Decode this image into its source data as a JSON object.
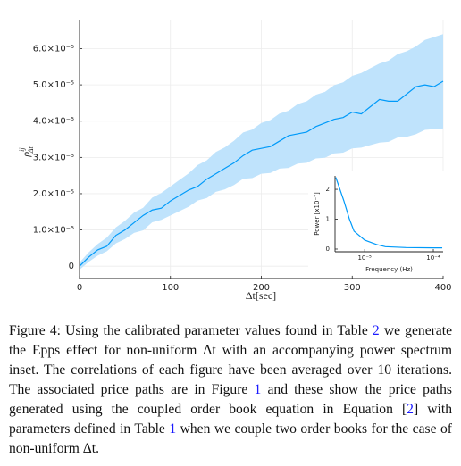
{
  "chart_data": {
    "type": "line",
    "ylabel": "ρ",
    "ylabel_sup": "ij",
    "ylabel_sub": "Δt",
    "xlabel": "Δt[sec]",
    "color": "#009af9",
    "band_color": "#bfe3fc",
    "grid": true,
    "xlim": [
      0,
      400
    ],
    "xticks": [
      0,
      100,
      200,
      300,
      400
    ],
    "ylim": [
      -3.4e-06,
      6.8e-05
    ],
    "yticks": [
      {
        "value": 0,
        "label": "0"
      },
      {
        "value": 1e-05,
        "label": "1.0×10⁻⁵"
      },
      {
        "value": 2e-05,
        "label": "2.0×10⁻⁵"
      },
      {
        "value": 3e-05,
        "label": "3.0×10⁻⁵"
      },
      {
        "value": 4e-05,
        "label": "4.0×10⁻⁵"
      },
      {
        "value": 5e-05,
        "label": "5.0×10⁻⁵"
      },
      {
        "value": 6e-05,
        "label": "6.0×10⁻⁵"
      }
    ],
    "x": [
      0,
      10,
      20,
      30,
      40,
      50,
      60,
      70,
      80,
      90,
      100,
      110,
      120,
      130,
      140,
      150,
      160,
      170,
      180,
      190,
      200,
      210,
      220,
      230,
      240,
      250,
      260,
      270,
      280,
      290,
      300,
      310,
      320,
      330,
      340,
      350,
      360,
      370,
      380,
      390,
      400
    ],
    "values": [
      0,
      2.5e-06,
      4.5e-06,
      5.5e-06,
      8.5e-06,
      1e-05,
      1.2e-05,
      1.4e-05,
      1.55e-05,
      1.6e-05,
      1.8e-05,
      1.95e-05,
      2.1e-05,
      2.2e-05,
      2.4e-05,
      2.55e-05,
      2.7e-05,
      2.85e-05,
      3.05e-05,
      3.2e-05,
      3.25e-05,
      3.3e-05,
      3.45e-05,
      3.6e-05,
      3.65e-05,
      3.7e-05,
      3.85e-05,
      3.95e-05,
      4.05e-05,
      4.1e-05,
      4.25e-05,
      4.2e-05,
      4.4e-05,
      4.6e-05,
      4.55e-05,
      4.55e-05,
      4.75e-05,
      4.95e-05,
      5e-05,
      4.95e-05,
      5.1e-05
    ],
    "lower": [
      -1e-06,
      1.2e-06,
      2.9e-06,
      4.1e-06,
      6.3e-06,
      7.5e-06,
      9.2e-06,
      9.9e-06,
      1.21e-05,
      1.28e-05,
      1.4e-05,
      1.52e-05,
      1.64e-05,
      1.81e-05,
      1.88e-05,
      2.05e-05,
      2.12e-05,
      2.24e-05,
      2.41e-05,
      2.43e-05,
      2.55e-05,
      2.57e-05,
      2.69e-05,
      2.71e-05,
      2.83e-05,
      2.85e-05,
      2.97e-05,
      2.99e-05,
      3.11e-05,
      3.13e-05,
      3.25e-05,
      3.27e-05,
      3.34e-05,
      3.41e-05,
      3.43e-05,
      3.55e-05,
      3.57e-05,
      3.64e-05,
      3.76e-05,
      3.78e-05,
      3.8e-05
    ],
    "upper": [
      1e-06,
      3.8e-06,
      6.1e-06,
      7.9e-06,
      1.07e-05,
      1.25e-05,
      1.48e-05,
      1.61e-05,
      1.89e-05,
      2.02e-05,
      2.2e-05,
      2.38e-05,
      2.56e-05,
      2.79e-05,
      2.92e-05,
      3.15e-05,
      3.28e-05,
      3.46e-05,
      3.69e-05,
      3.77e-05,
      3.95e-05,
      4.03e-05,
      4.21e-05,
      4.29e-05,
      4.47e-05,
      4.55e-05,
      4.73e-05,
      4.81e-05,
      4.99e-05,
      5.07e-05,
      5.25e-05,
      5.33e-05,
      5.46e-05,
      5.59e-05,
      5.67e-05,
      5.85e-05,
      5.93e-05,
      6.06e-05,
      6.24e-05,
      6.32e-05,
      6.4e-05
    ],
    "inset": {
      "type": "line",
      "log_x": true,
      "ylabel": "Power [x10⁻⁷]",
      "xlabel": "Frequency (Hz)",
      "xlim": [
        3.7e-06,
        0.000139
      ],
      "xticks": [
        {
          "value": 1e-05,
          "label": "10⁻⁵"
        },
        {
          "value": 0.0001,
          "label": "10⁻⁴"
        }
      ],
      "ylim": [
        -0.09,
        2.45
      ],
      "yticks": [
        0,
        1,
        2
      ],
      "x": [
        3.8e-06,
        5e-06,
        6e-06,
        7e-06,
        1e-05,
        1.5e-05,
        2e-05,
        4e-05,
        0.0001,
        0.000135
      ],
      "values": [
        2.4,
        1.6,
        1.0,
        0.6,
        0.3,
        0.15,
        0.08,
        0.05,
        0.04,
        0.04
      ]
    }
  },
  "caption": [
    "Figure 4: Using the calibrated parameter values found in Table ",
    "2",
    " we generate the Epps effect for non-uniform Δt with an accompanying power spectrum inset. The correlations of each figure have been averaged over 10 iterations. The associated price paths are in Figure ",
    "1",
    " and these show the price paths generated using the coupled order book equation in Equation [",
    "2",
    "] with parameters defined in Table ",
    "1",
    " when we couple two order books for the case of non-uniform Δt."
  ]
}
